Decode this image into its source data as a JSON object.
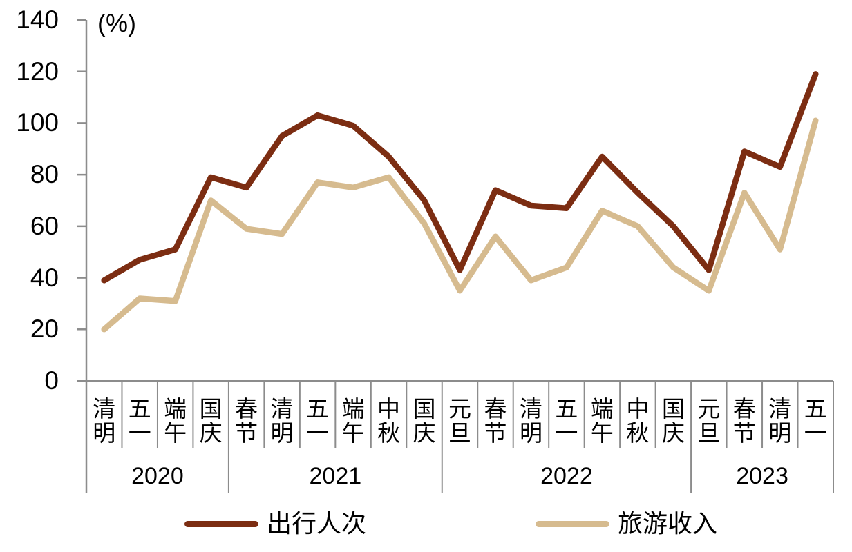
{
  "chart_data": {
    "type": "line",
    "title": "",
    "unit_label": "(%)",
    "xlabel": "",
    "ylabel": "",
    "ylim": [
      0,
      140
    ],
    "yticks": [
      0,
      20,
      40,
      60,
      80,
      100,
      120,
      140
    ],
    "grid": false,
    "legend_position": "bottom",
    "x_labels": [
      "清明",
      "五一",
      "端午",
      "国庆",
      "春节",
      "清明",
      "五一",
      "端午",
      "中秋",
      "国庆",
      "元旦",
      "春节",
      "清明",
      "五一",
      "端午",
      "中秋",
      "国庆",
      "元旦",
      "春节",
      "清明",
      "五一"
    ],
    "year_groups": [
      {
        "label": "2020",
        "count": 4
      },
      {
        "label": "2021",
        "count": 6
      },
      {
        "label": "2022",
        "count": 7
      },
      {
        "label": "2023",
        "count": 4
      }
    ],
    "series": [
      {
        "name": "出行人次",
        "color": "#7C2D12",
        "values": [
          39,
          47,
          51,
          79,
          75,
          95,
          103,
          99,
          87,
          70,
          43,
          74,
          68,
          67,
          87,
          73,
          60,
          43,
          89,
          83,
          119
        ]
      },
      {
        "name": "旅游收入",
        "color": "#D6BB8F",
        "values": [
          20,
          32,
          31,
          70,
          59,
          57,
          77,
          75,
          79,
          61,
          35,
          56,
          39,
          44,
          66,
          60,
          44,
          35,
          73,
          51,
          101
        ]
      }
    ]
  },
  "colors": {
    "axis": "#8C8C8C",
    "text": "#000000",
    "background": "#FFFFFF"
  }
}
